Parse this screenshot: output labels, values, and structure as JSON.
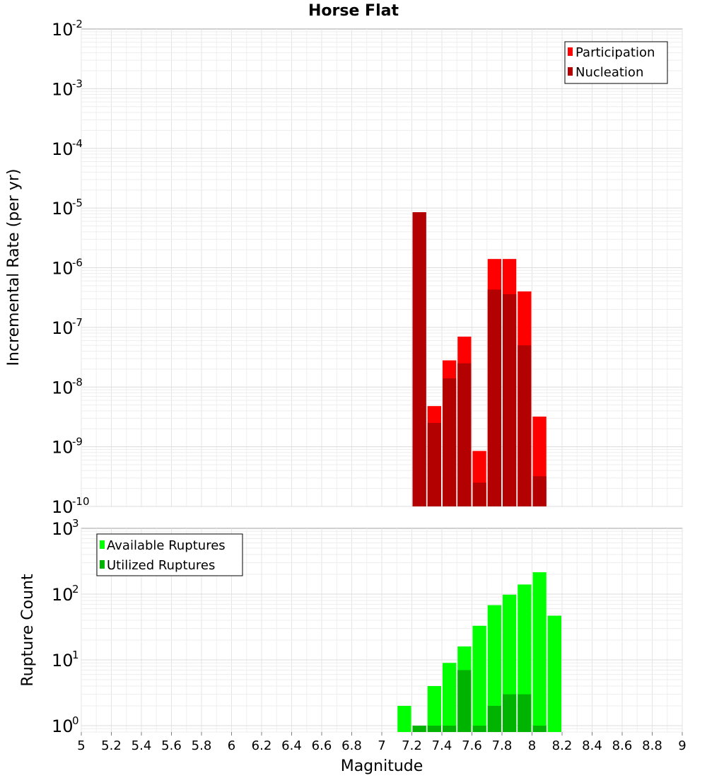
{
  "chart_data": [
    {
      "type": "bar",
      "title": "Horse Flat",
      "xlabel": "",
      "ylabel": "Incremental Rate (per yr)",
      "yscale": "log",
      "ylim": [
        1e-10,
        0.01
      ],
      "xlim": [
        5,
        9
      ],
      "bar_width": 0.1,
      "grid": true,
      "legend_position": "top-right",
      "x": [
        7.25,
        7.35,
        7.45,
        7.55,
        7.65,
        7.75,
        7.85,
        7.95,
        8.05
      ],
      "series": [
        {
          "name": "Participation",
          "color": "#ff0000",
          "values": [
            8.5e-06,
            4.8e-09,
            2.8e-08,
            7e-08,
            8.5e-10,
            1.4e-06,
            1.4e-06,
            4e-07,
            3.2e-09
          ]
        },
        {
          "name": "Nucleation",
          "color": "#b30000",
          "values": [
            8.5e-06,
            2.5e-09,
            1.4e-08,
            2.5e-08,
            2.5e-10,
            4.3e-07,
            3.6e-07,
            5e-08,
            3.2e-10
          ]
        }
      ]
    },
    {
      "type": "bar",
      "title": "",
      "xlabel": "Magnitude",
      "ylabel": "Rupture Count",
      "yscale": "log",
      "ylim": [
        0.8,
        1000
      ],
      "xlim": [
        5,
        9
      ],
      "bar_width": 0.1,
      "grid": true,
      "legend_position": "top-left",
      "x": [
        7.15,
        7.25,
        7.35,
        7.45,
        7.55,
        7.65,
        7.75,
        7.85,
        7.95,
        8.05,
        8.15
      ],
      "series": [
        {
          "name": "Available Ruptures",
          "color": "#00ff00",
          "values": [
            2,
            1,
            4,
            9,
            16,
            33,
            68,
            98,
            140,
            215,
            47
          ]
        },
        {
          "name": "Utilized Ruptures",
          "color": "#00b300",
          "values": [
            0,
            1,
            1,
            1,
            7,
            1,
            2,
            3,
            3,
            1,
            0
          ]
        }
      ]
    }
  ],
  "x_ticks": [
    "5",
    "5.2",
    "5.4",
    "5.6",
    "5.8",
    "6",
    "6.2",
    "6.4",
    "6.6",
    "6.8",
    "7",
    "7.2",
    "7.4",
    "7.6",
    "7.8",
    "8",
    "8.2",
    "8.4",
    "8.6",
    "8.8",
    "9"
  ],
  "top_y_ticks": [
    {
      "base": "10",
      "exp": "-2"
    },
    {
      "base": "10",
      "exp": "-3"
    },
    {
      "base": "10",
      "exp": "-4"
    },
    {
      "base": "10",
      "exp": "-5"
    },
    {
      "base": "10",
      "exp": "-6"
    },
    {
      "base": "10",
      "exp": "-7"
    },
    {
      "base": "10",
      "exp": "-8"
    },
    {
      "base": "10",
      "exp": "-9"
    },
    {
      "base": "10",
      "exp": "-10"
    }
  ],
  "bottom_y_ticks": [
    {
      "base": "10",
      "exp": "3"
    },
    {
      "base": "10",
      "exp": "2"
    },
    {
      "base": "10",
      "exp": "1"
    },
    {
      "base": "10",
      "exp": "0"
    }
  ]
}
